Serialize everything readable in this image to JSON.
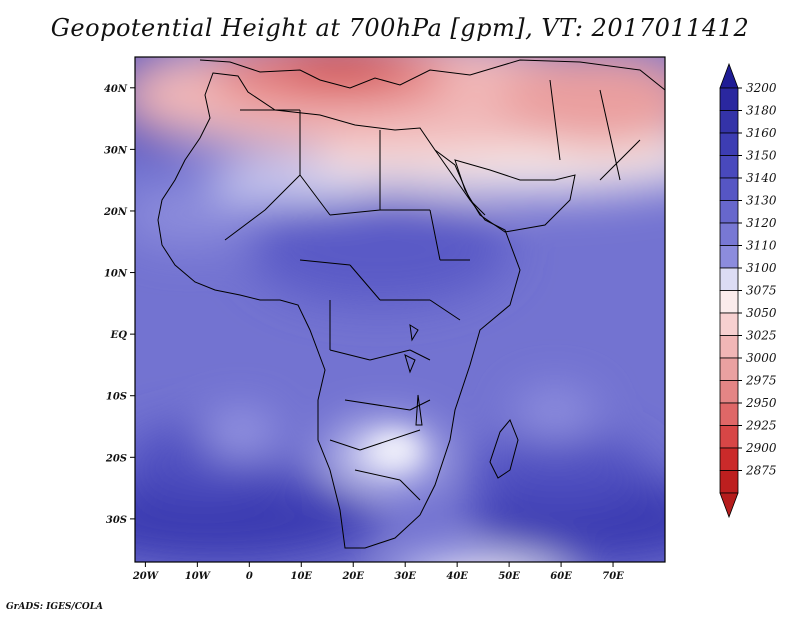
{
  "title": "Geopotential Height at 700hPa [gpm], VT: 2017011412",
  "credit": "GrADS: IGES/COLA",
  "map": {
    "variable": "Geopotential Height",
    "level": "700hPa",
    "units": "gpm",
    "valid_time": "2017011412",
    "lon_range": [
      -22,
      80
    ],
    "lat_range": [
      -37,
      45
    ],
    "x_ticks": [
      {
        "lon": -20,
        "label": "20W"
      },
      {
        "lon": -10,
        "label": "10W"
      },
      {
        "lon": 0,
        "label": "0"
      },
      {
        "lon": 10,
        "label": "10E"
      },
      {
        "lon": 20,
        "label": "20E"
      },
      {
        "lon": 30,
        "label": "30E"
      },
      {
        "lon": 40,
        "label": "40E"
      },
      {
        "lon": 50,
        "label": "50E"
      },
      {
        "lon": 60,
        "label": "60E"
      },
      {
        "lon": 70,
        "label": "70E"
      }
    ],
    "y_ticks": [
      {
        "lat": 40,
        "label": "40N"
      },
      {
        "lat": 30,
        "label": "30N"
      },
      {
        "lat": 20,
        "label": "20N"
      },
      {
        "lat": 10,
        "label": "10N"
      },
      {
        "lat": 0,
        "label": "EQ"
      },
      {
        "lat": -10,
        "label": "10S"
      },
      {
        "lat": -20,
        "label": "20S"
      },
      {
        "lat": -30,
        "label": "30S"
      }
    ]
  },
  "colorbar": {
    "levels": [
      "3200",
      "3180",
      "3160",
      "3150",
      "3140",
      "3130",
      "3120",
      "3110",
      "3100",
      "3075",
      "3050",
      "3025",
      "3000",
      "2975",
      "2950",
      "2925",
      "2900",
      "2875"
    ],
    "colors": [
      "#2a279f",
      "#3433a8",
      "#3d3db3",
      "#4949bd",
      "#5656c4",
      "#6767cc",
      "#7878d4",
      "#8c8cdd",
      "#dcdcf4",
      "#fbecec",
      "#f7d0d0",
      "#f1b6b6",
      "#eaa1a1",
      "#e48585",
      "#df6767",
      "#d74646",
      "#cb2a2a",
      "#bd1f1f"
    ],
    "top_arrow_color": "#1f1c95",
    "bottom_arrow_color": "#b51c1c"
  }
}
